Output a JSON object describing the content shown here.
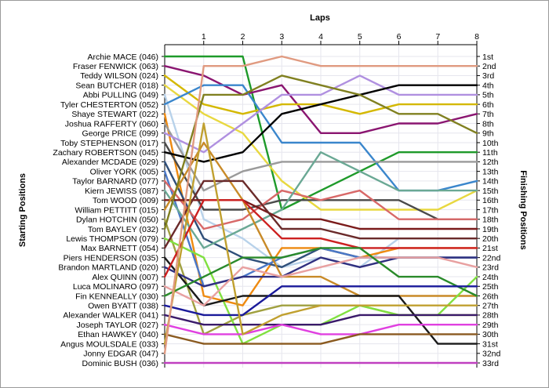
{
  "chart_data": {
    "type": "line",
    "title": "Laps",
    "xlabel": "Laps",
    "ylabel_left": "Starting Positions",
    "ylabel_right": "Finishing Positions",
    "laps": [
      1,
      2,
      3,
      4,
      5,
      6,
      7,
      8
    ],
    "finishing_labels": [
      "1st",
      "2nd",
      "3rd",
      "4th",
      "5th",
      "6th",
      "7th",
      "8th",
      "9th",
      "10th",
      "11th",
      "12th",
      "13th",
      "14th",
      "15th",
      "16th",
      "17th",
      "18th",
      "19th",
      "20th",
      "21st",
      "22nd",
      "23rd",
      "24th",
      "25th",
      "26th",
      "27th",
      "28th",
      "29th",
      "30th",
      "31st",
      "32nd",
      "33rd"
    ],
    "drivers": [
      {
        "name": "Archie MACE (046)",
        "color": "#1e9a2a",
        "positions": [
          1,
          1,
          1,
          17,
          15,
          13,
          11,
          11,
          11
        ]
      },
      {
        "name": "Fraser FENWICK (063)",
        "color": "#8a1570",
        "positions": [
          2,
          3,
          5,
          4,
          9,
          9,
          8,
          8,
          7
        ]
      },
      {
        "name": "Teddy WILSON (024)",
        "color": "#d4b800",
        "positions": [
          3,
          6,
          7,
          6,
          6,
          7,
          6,
          6,
          6
        ]
      },
      {
        "name": "Sean BUTCHER (018)",
        "color": "#e8d840",
        "positions": [
          4,
          7,
          9,
          14,
          17,
          17,
          17,
          17,
          15
        ]
      },
      {
        "name": "Abbi PULLING (049)",
        "color": "#b8d2ea",
        "positions": [
          5,
          18,
          20,
          23,
          22,
          23,
          20,
          20,
          20
        ]
      },
      {
        "name": "Tyler CHESTERTON (052)",
        "color": "#3a86cc",
        "positions": [
          6,
          4,
          4,
          10,
          10,
          10,
          15,
          15,
          14
        ]
      },
      {
        "name": "Shaye STEWART (022)",
        "color": "#ee8a10",
        "positions": [
          7,
          26,
          27,
          21,
          21,
          22,
          21,
          21,
          21
        ]
      },
      {
        "name": "Joshua RAFFERTY (060)",
        "color": "#9a9a9a",
        "positions": [
          8,
          15,
          13,
          12,
          12,
          12,
          12,
          12,
          12
        ]
      },
      {
        "name": "George PRICE (099)",
        "color": "#b090e0",
        "positions": [
          9,
          11,
          8,
          5,
          5,
          3,
          5,
          5,
          5
        ]
      },
      {
        "name": "Toby STEPHENSON (017)",
        "color": "#4a4a4a",
        "positions": [
          10,
          17,
          17,
          16,
          16,
          16,
          16,
          18,
          18
        ]
      },
      {
        "name": "Zachary ROBERTSON (045)",
        "color": "#000000",
        "positions": [
          11,
          12,
          11,
          7,
          6,
          5,
          4,
          4,
          4
        ]
      },
      {
        "name": "Alexander MCDADE (029)",
        "color": "#2f4f7a",
        "positions": [
          12,
          20,
          22,
          23,
          21,
          22,
          22,
          22,
          22
        ]
      },
      {
        "name": "Oliver YORK (005)",
        "color": "#4a78c8",
        "positions": [
          13,
          25,
          24,
          22,
          21,
          22,
          22,
          22,
          22
        ]
      },
      {
        "name": "Taylor BARNARD (077)",
        "color": "#d86868",
        "positions": [
          14,
          19,
          18,
          15,
          16,
          15,
          18,
          18,
          18
        ]
      },
      {
        "name": "Kiern JEWISS (087)",
        "color": "#6aa894",
        "positions": [
          15,
          21,
          19,
          17,
          11,
          13,
          15,
          15,
          15
        ]
      },
      {
        "name": "Tom WOOD (009)",
        "color": "#7a1a1a",
        "positions": [
          16,
          16,
          16,
          18,
          18,
          19,
          19,
          19,
          19
        ]
      },
      {
        "name": "William PETTITT (015)",
        "color": "#c88a28",
        "positions": [
          17,
          10,
          16,
          24,
          24,
          26,
          26,
          26,
          26
        ]
      },
      {
        "name": "Dylan HOTCHIN (050)",
        "color": "#a0a040",
        "positions": [
          18,
          30,
          28,
          27,
          27,
          27,
          28,
          28,
          28
        ]
      },
      {
        "name": "Tom BAYLEY (032)",
        "color": "#808020",
        "positions": [
          19,
          5,
          5,
          3,
          4,
          5,
          7,
          7,
          9
        ]
      },
      {
        "name": "Lewis THOMPSON (079)",
        "color": "#80e040",
        "positions": [
          20,
          22,
          31,
          29,
          29,
          27,
          28,
          28,
          24
        ]
      },
      {
        "name": "Max BARNETT (054)",
        "color": "#6a2a2a",
        "positions": [
          21,
          14,
          14,
          19,
          19,
          20,
          20,
          20,
          20
        ]
      },
      {
        "name": "Piers HENDERSON (035)",
        "color": "#1a1a1a",
        "positions": [
          22,
          27,
          26,
          26,
          26,
          26,
          26,
          31,
          31
        ]
      },
      {
        "name": "Brandon MARTLAND (020)",
        "color": "#303080",
        "positions": [
          23,
          25,
          24,
          24,
          22,
          23,
          22,
          22,
          22
        ]
      },
      {
        "name": "Alex QUINN (007)",
        "color": "#cc2020",
        "positions": [
          24,
          16,
          16,
          20,
          20,
          21,
          21,
          21,
          21
        ]
      },
      {
        "name": "Luca MOLINARO (097)",
        "color": "#e8a0a0",
        "positions": [
          25,
          27,
          23,
          24,
          23,
          22,
          22,
          22,
          23
        ]
      },
      {
        "name": "Fin KENNEALLY (030)",
        "color": "#2a8a2a",
        "positions": [
          26,
          24,
          22,
          22,
          21,
          21,
          24,
          24,
          26
        ]
      },
      {
        "name": "Owen BYATT (038)",
        "color": "#1a1a9a",
        "positions": [
          27,
          28,
          28,
          25,
          25,
          25,
          25,
          25,
          25
        ]
      },
      {
        "name": "Alexander WALKER (041)",
        "color": "#3a1a6a",
        "positions": [
          28,
          29,
          29,
          29,
          29,
          28,
          28,
          28,
          28
        ]
      },
      {
        "name": "Joseph TAYLOR (027)",
        "color": "#e040e0",
        "positions": [
          29,
          30,
          30,
          29,
          30,
          30,
          29,
          29,
          29
        ]
      },
      {
        "name": "Ethan HAWKEY (040)",
        "color": "#8a5a20",
        "positions": [
          30,
          31,
          31,
          31,
          31,
          30,
          30,
          30,
          30
        ]
      },
      {
        "name": "Angus MOULSDALE (033)",
        "color": "#c0a030",
        "positions": [
          31,
          8,
          30,
          28,
          27,
          27,
          27,
          27,
          27
        ]
      },
      {
        "name": "Jonny EDGAR (047)",
        "color": "#e09a80",
        "positions": [
          32,
          2,
          2,
          1,
          2,
          2,
          2,
          2,
          2
        ]
      },
      {
        "name": "Dominic BUSH (036)",
        "color": "#c040c0",
        "positions": [
          33,
          33,
          33,
          33,
          33,
          33,
          33,
          33,
          33
        ]
      }
    ]
  }
}
